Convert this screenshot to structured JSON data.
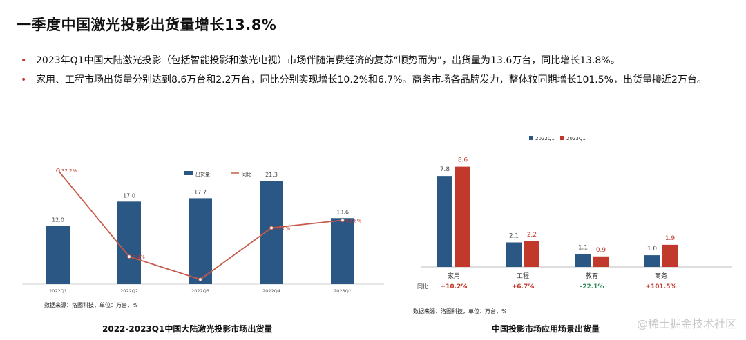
{
  "page": {
    "title": "一季度中国激光投影出货量增长13.8%",
    "bullets": [
      "2023年Q1中国大陆激光投影（包括智能投影和激光电视）市场伴随消费经济的复苏“顺势而为”，出货量为13.6万台，同比增长13.8%。",
      "家用、工程市场出货量分别达到8.6万台和2.2万台，同比分别实现增长10.2%和6.7%。商务市场各品牌发力，整体较同期增长101.5%，出货量接近2万台。"
    ],
    "watermark": "@稀土掘金技术社区"
  },
  "colors": {
    "blue": "#2a5783",
    "red": "#c0392b",
    "green": "#2e8b57",
    "line": "#c75b4a"
  },
  "chart_data": [
    {
      "type": "bar",
      "title": "2022-2023Q1中国大陆激光投影市场出货量",
      "source": "数据来源：洛图科技，单位：万台，%",
      "categories": [
        "2022Q1",
        "2022Q2",
        "2022Q3",
        "2022Q4",
        "2023Q1"
      ],
      "series": [
        {
          "name": "出货量",
          "type": "bar",
          "values": [
            12.0,
            17.0,
            17.7,
            21.3,
            13.6
          ],
          "labels": [
            "12.0",
            "17.0",
            "17.7",
            "21.3",
            "13.6"
          ]
        },
        {
          "name": "同比",
          "type": "line",
          "values": [
            32.2,
            0.4,
            -8.0,
            11.0,
            13.8
          ],
          "labels": [
            "32.2%",
            "0.4%",
            "",
            "11.0%",
            "13.8%"
          ]
        }
      ],
      "ylim": [
        0,
        25
      ],
      "y2lim": [
        -10,
        35
      ],
      "legend": "top"
    },
    {
      "type": "bar",
      "title": "中国投影市场应用场景出货量",
      "source": "数据来源：洛图科技，单位：万台，%",
      "categories": [
        "家用",
        "工程",
        "教育",
        "商务"
      ],
      "series": [
        {
          "name": "2022Q1",
          "values": [
            7.8,
            2.1,
            1.1,
            1.0
          ],
          "labels": [
            "7.8",
            "2.1",
            "1.1",
            "1.0"
          ]
        },
        {
          "name": "2023Q1",
          "values": [
            8.6,
            2.2,
            0.9,
            1.9
          ],
          "labels": [
            "8.6",
            "2.2",
            "0.9",
            "1.9"
          ]
        }
      ],
      "yoy_label": "同比",
      "yoy": [
        "+10.2%",
        "+6.7%",
        "-22.1%",
        "+101.5%"
      ],
      "ylim": [
        0,
        10
      ],
      "legend": "top"
    }
  ]
}
